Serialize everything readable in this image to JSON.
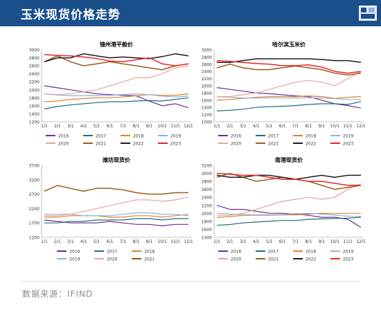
{
  "header": {
    "title": "玉米现货价格走势"
  },
  "footer": {
    "source": "数据来源：IFIND"
  },
  "colors": {
    "header_bg": "#1b4f8c",
    "2016": "#6b2c8c",
    "2017": "#1f6b78",
    "2018": "#d9822b",
    "2019": "#8fb0e0",
    "2020": "#e3a5a0",
    "2021": "#9b5a1a",
    "2022": "#1a1a1a",
    "2023": "#e8232a"
  },
  "chart_data": [
    {
      "type": "line",
      "title": "锦州港平舱价",
      "categories": [
        "1/1",
        "2/1",
        "3/1",
        "4/1",
        "5/1",
        "6/1",
        "7/1",
        "8/1",
        "9/1",
        "10/1",
        "11/1",
        "12/1"
      ],
      "ylim": [
        1200,
        3000
      ],
      "yticks": [
        1200,
        1400,
        1600,
        1800,
        2000,
        2200,
        2400,
        2600,
        2800,
        3000
      ],
      "legend_rows": [
        [
          "2016",
          "2017",
          "2018",
          "2019"
        ],
        [
          "2020",
          "2021",
          "2022",
          "2023"
        ]
      ],
      "series": [
        {
          "name": "2016",
          "values": [
            2100,
            2050,
            2000,
            1950,
            1900,
            1880,
            1860,
            1850,
            1720,
            1600,
            1650,
            1550
          ]
        },
        {
          "name": "2017",
          "values": [
            1520,
            1580,
            1620,
            1650,
            1680,
            1700,
            1700,
            1720,
            1730,
            1720,
            1760,
            1800
          ]
        },
        {
          "name": "2018",
          "values": [
            1700,
            1720,
            1760,
            1780,
            1800,
            1800,
            1820,
            1850,
            1880,
            1860,
            1860,
            1900
          ]
        },
        {
          "name": "2019",
          "values": [
            1900,
            1870,
            1850,
            1850,
            1850,
            1860,
            1880,
            1900,
            1880,
            1840,
            1820,
            1840
          ]
        },
        {
          "name": "2020",
          "values": [
            1900,
            1880,
            1900,
            1950,
            2000,
            2100,
            2200,
            2300,
            2300,
            2400,
            2550,
            2600
          ]
        },
        {
          "name": "2021",
          "values": [
            2700,
            2850,
            2700,
            2600,
            2650,
            2700,
            2650,
            2600,
            2550,
            2500,
            2600,
            2650
          ]
        },
        {
          "name": "2022",
          "values": [
            2700,
            2800,
            2800,
            2900,
            2850,
            2800,
            2820,
            2800,
            2780,
            2830,
            2900,
            2850
          ]
        },
        {
          "name": "2023",
          "values": [
            2880,
            2860,
            2850,
            2820,
            2780,
            2720,
            2700,
            2750,
            2800,
            2650,
            2600,
            2650
          ]
        }
      ]
    },
    {
      "type": "line",
      "title": "哈尔滨玉米价",
      "categories": [
        "1/1",
        "2/1",
        "3/1",
        "4/1",
        "5/1",
        "6/1",
        "7/1",
        "8/1",
        "9/1",
        "10/1",
        "11/1",
        "12/1"
      ],
      "ylim": [
        1000,
        3000
      ],
      "yticks": [
        1000,
        1200,
        1400,
        1600,
        1800,
        2000,
        2200,
        2400,
        2600,
        2800,
        3000
      ],
      "legend_rows": [
        [
          "2016",
          "2017",
          "2018",
          "2019"
        ],
        [
          "2020",
          "2021",
          "2022",
          "2023"
        ]
      ],
      "series": [
        {
          "name": "2016",
          "values": [
            1950,
            1900,
            1850,
            1800,
            1780,
            1750,
            1720,
            1700,
            1600,
            1500,
            1450,
            1380
          ]
        },
        {
          "name": "2017",
          "values": [
            1300,
            1320,
            1350,
            1400,
            1420,
            1430,
            1450,
            1480,
            1500,
            1500,
            1480,
            1560
          ]
        },
        {
          "name": "2018",
          "values": [
            1600,
            1620,
            1650,
            1680,
            1700,
            1700,
            1700,
            1720,
            1700,
            1650,
            1680,
            1700
          ]
        },
        {
          "name": "2019",
          "values": [
            1700,
            1680,
            1660,
            1660,
            1660,
            1660,
            1660,
            1670,
            1660,
            1640,
            1620,
            1620
          ]
        },
        {
          "name": "2020",
          "values": [
            1700,
            1700,
            1750,
            1800,
            1900,
            2000,
            2100,
            2150,
            2100,
            2000,
            2200,
            2400
          ]
        },
        {
          "name": "2021",
          "values": [
            2500,
            2600,
            2500,
            2450,
            2450,
            2500,
            2550,
            2500,
            2450,
            2350,
            2300,
            2350
          ]
        },
        {
          "name": "2022",
          "values": [
            2650,
            2650,
            2700,
            2750,
            2750,
            2750,
            2750,
            2750,
            2730,
            2700,
            2700,
            2650
          ]
        },
        {
          "name": "2023",
          "values": [
            2700,
            2680,
            2650,
            2620,
            2600,
            2560,
            2560,
            2580,
            2520,
            2400,
            2350,
            2400
          ]
        }
      ]
    },
    {
      "type": "line",
      "title": "潍坊现货价",
      "categories": [
        "1/1",
        "2/1",
        "3/1",
        "4/1",
        "5/1",
        "6/1",
        "7/1",
        "8/1",
        "9/1",
        "10/1",
        "11/1",
        "12/1"
      ],
      "ylim": [
        1200,
        3700
      ],
      "yticks": [
        1200,
        1700,
        2200,
        2700,
        3200,
        3700
      ],
      "legend_rows": [
        [
          "2016",
          "2017",
          "2018"
        ],
        [
          "2019",
          "2020",
          "2021"
        ]
      ],
      "series": [
        {
          "name": "2016",
          "values": [
            1800,
            1750,
            1700,
            1700,
            1700,
            1750,
            1700,
            1650,
            1650,
            1600,
            1650,
            1650
          ]
        },
        {
          "name": "2017",
          "values": [
            1700,
            1700,
            1750,
            1750,
            1800,
            1800,
            1800,
            1850,
            1850,
            1800,
            1850,
            1850
          ]
        },
        {
          "name": "2018",
          "values": [
            1900,
            1900,
            1950,
            1950,
            1950,
            1900,
            1900,
            1950,
            1950,
            1900,
            1950,
            2000
          ]
        },
        {
          "name": "2019",
          "values": [
            2000,
            2000,
            2000,
            1950,
            1950,
            1950,
            2000,
            2050,
            2050,
            2000,
            2000,
            1950
          ]
        },
        {
          "name": "2020",
          "values": [
            1950,
            1950,
            2000,
            2100,
            2200,
            2300,
            2400,
            2500,
            2500,
            2450,
            2500,
            2600
          ]
        },
        {
          "name": "2021",
          "values": [
            2800,
            3000,
            2900,
            2800,
            2900,
            2900,
            2850,
            2750,
            2700,
            2700,
            2750,
            2750
          ]
        }
      ]
    },
    {
      "type": "line",
      "title": "南港现货价",
      "categories": [
        "1/1",
        "2/1",
        "3/1",
        "4/1",
        "5/1",
        "6/1",
        "7/1",
        "8/1",
        "9/1",
        "10/1",
        "11/1",
        "12/1"
      ],
      "ylim": [
        1400,
        3200
      ],
      "yticks": [
        1400,
        1600,
        1800,
        2000,
        2200,
        2400,
        2600,
        2800,
        3000,
        3200
      ],
      "legend_rows": [
        [
          "2016",
          "2017",
          "2018",
          "2019"
        ],
        [
          "2020",
          "2021",
          "2022",
          "2023"
        ]
      ],
      "series": [
        {
          "name": "2016",
          "values": [
            2200,
            2100,
            2100,
            2050,
            2000,
            2000,
            1980,
            1950,
            1900,
            1900,
            1850,
            1650
          ]
        },
        {
          "name": "2017",
          "values": [
            1700,
            1720,
            1760,
            1780,
            1800,
            1820,
            1820,
            1850,
            1860,
            1870,
            1880,
            1900
          ]
        },
        {
          "name": "2018",
          "values": [
            1900,
            1920,
            1950,
            1950,
            1950,
            1960,
            1960,
            1980,
            2000,
            1990,
            2000,
            2000
          ]
        },
        {
          "name": "2019",
          "values": [
            2000,
            1980,
            1970,
            1960,
            1960,
            1970,
            1990,
            2000,
            1980,
            1950,
            1930,
            1920
          ]
        },
        {
          "name": "2020",
          "values": [
            1950,
            1950,
            2000,
            2100,
            2200,
            2300,
            2350,
            2400,
            2350,
            2400,
            2600,
            2750
          ]
        },
        {
          "name": "2021",
          "values": [
            2900,
            3000,
            2900,
            2800,
            2850,
            2900,
            2850,
            2800,
            2700,
            2600,
            2650,
            2700
          ]
        },
        {
          "name": "2022",
          "values": [
            2950,
            2900,
            2900,
            2950,
            2950,
            2900,
            2850,
            2900,
            2950,
            2900,
            2950,
            2950
          ]
        },
        {
          "name": "2023",
          "values": [
            3000,
            2980,
            2950,
            2950,
            2900,
            2850,
            2850,
            2800,
            2800,
            2750,
            2700,
            2700
          ]
        }
      ]
    }
  ]
}
